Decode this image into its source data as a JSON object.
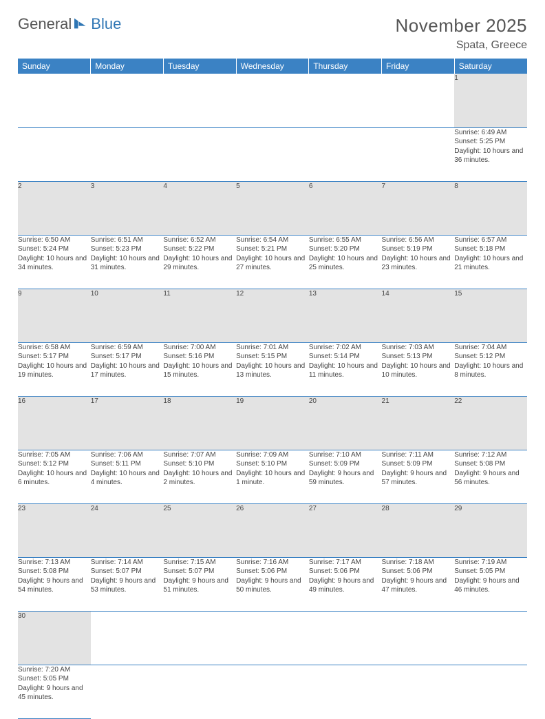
{
  "logo": {
    "text1": "General",
    "text2": "Blue"
  },
  "title": "November 2025",
  "location": "Spata, Greece",
  "colors": {
    "header_bg": "#3b82c4",
    "header_text": "#ffffff",
    "daynum_bg": "#e3e3e3",
    "border": "#3b82c4",
    "text": "#444444",
    "title_text": "#555555"
  },
  "weekdays": [
    "Sunday",
    "Monday",
    "Tuesday",
    "Wednesday",
    "Thursday",
    "Friday",
    "Saturday"
  ],
  "weeks": [
    {
      "days": [
        null,
        null,
        null,
        null,
        null,
        null,
        {
          "n": "1",
          "sunrise": "Sunrise: 6:49 AM",
          "sunset": "Sunset: 5:25 PM",
          "daylight": "Daylight: 10 hours and 36 minutes."
        }
      ]
    },
    {
      "days": [
        {
          "n": "2",
          "sunrise": "Sunrise: 6:50 AM",
          "sunset": "Sunset: 5:24 PM",
          "daylight": "Daylight: 10 hours and 34 minutes."
        },
        {
          "n": "3",
          "sunrise": "Sunrise: 6:51 AM",
          "sunset": "Sunset: 5:23 PM",
          "daylight": "Daylight: 10 hours and 31 minutes."
        },
        {
          "n": "4",
          "sunrise": "Sunrise: 6:52 AM",
          "sunset": "Sunset: 5:22 PM",
          "daylight": "Daylight: 10 hours and 29 minutes."
        },
        {
          "n": "5",
          "sunrise": "Sunrise: 6:54 AM",
          "sunset": "Sunset: 5:21 PM",
          "daylight": "Daylight: 10 hours and 27 minutes."
        },
        {
          "n": "6",
          "sunrise": "Sunrise: 6:55 AM",
          "sunset": "Sunset: 5:20 PM",
          "daylight": "Daylight: 10 hours and 25 minutes."
        },
        {
          "n": "7",
          "sunrise": "Sunrise: 6:56 AM",
          "sunset": "Sunset: 5:19 PM",
          "daylight": "Daylight: 10 hours and 23 minutes."
        },
        {
          "n": "8",
          "sunrise": "Sunrise: 6:57 AM",
          "sunset": "Sunset: 5:18 PM",
          "daylight": "Daylight: 10 hours and 21 minutes."
        }
      ]
    },
    {
      "days": [
        {
          "n": "9",
          "sunrise": "Sunrise: 6:58 AM",
          "sunset": "Sunset: 5:17 PM",
          "daylight": "Daylight: 10 hours and 19 minutes."
        },
        {
          "n": "10",
          "sunrise": "Sunrise: 6:59 AM",
          "sunset": "Sunset: 5:17 PM",
          "daylight": "Daylight: 10 hours and 17 minutes."
        },
        {
          "n": "11",
          "sunrise": "Sunrise: 7:00 AM",
          "sunset": "Sunset: 5:16 PM",
          "daylight": "Daylight: 10 hours and 15 minutes."
        },
        {
          "n": "12",
          "sunrise": "Sunrise: 7:01 AM",
          "sunset": "Sunset: 5:15 PM",
          "daylight": "Daylight: 10 hours and 13 minutes."
        },
        {
          "n": "13",
          "sunrise": "Sunrise: 7:02 AM",
          "sunset": "Sunset: 5:14 PM",
          "daylight": "Daylight: 10 hours and 11 minutes."
        },
        {
          "n": "14",
          "sunrise": "Sunrise: 7:03 AM",
          "sunset": "Sunset: 5:13 PM",
          "daylight": "Daylight: 10 hours and 10 minutes."
        },
        {
          "n": "15",
          "sunrise": "Sunrise: 7:04 AM",
          "sunset": "Sunset: 5:12 PM",
          "daylight": "Daylight: 10 hours and 8 minutes."
        }
      ]
    },
    {
      "days": [
        {
          "n": "16",
          "sunrise": "Sunrise: 7:05 AM",
          "sunset": "Sunset: 5:12 PM",
          "daylight": "Daylight: 10 hours and 6 minutes."
        },
        {
          "n": "17",
          "sunrise": "Sunrise: 7:06 AM",
          "sunset": "Sunset: 5:11 PM",
          "daylight": "Daylight: 10 hours and 4 minutes."
        },
        {
          "n": "18",
          "sunrise": "Sunrise: 7:07 AM",
          "sunset": "Sunset: 5:10 PM",
          "daylight": "Daylight: 10 hours and 2 minutes."
        },
        {
          "n": "19",
          "sunrise": "Sunrise: 7:09 AM",
          "sunset": "Sunset: 5:10 PM",
          "daylight": "Daylight: 10 hours and 1 minute."
        },
        {
          "n": "20",
          "sunrise": "Sunrise: 7:10 AM",
          "sunset": "Sunset: 5:09 PM",
          "daylight": "Daylight: 9 hours and 59 minutes."
        },
        {
          "n": "21",
          "sunrise": "Sunrise: 7:11 AM",
          "sunset": "Sunset: 5:09 PM",
          "daylight": "Daylight: 9 hours and 57 minutes."
        },
        {
          "n": "22",
          "sunrise": "Sunrise: 7:12 AM",
          "sunset": "Sunset: 5:08 PM",
          "daylight": "Daylight: 9 hours and 56 minutes."
        }
      ]
    },
    {
      "days": [
        {
          "n": "23",
          "sunrise": "Sunrise: 7:13 AM",
          "sunset": "Sunset: 5:08 PM",
          "daylight": "Daylight: 9 hours and 54 minutes."
        },
        {
          "n": "24",
          "sunrise": "Sunrise: 7:14 AM",
          "sunset": "Sunset: 5:07 PM",
          "daylight": "Daylight: 9 hours and 53 minutes."
        },
        {
          "n": "25",
          "sunrise": "Sunrise: 7:15 AM",
          "sunset": "Sunset: 5:07 PM",
          "daylight": "Daylight: 9 hours and 51 minutes."
        },
        {
          "n": "26",
          "sunrise": "Sunrise: 7:16 AM",
          "sunset": "Sunset: 5:06 PM",
          "daylight": "Daylight: 9 hours and 50 minutes."
        },
        {
          "n": "27",
          "sunrise": "Sunrise: 7:17 AM",
          "sunset": "Sunset: 5:06 PM",
          "daylight": "Daylight: 9 hours and 49 minutes."
        },
        {
          "n": "28",
          "sunrise": "Sunrise: 7:18 AM",
          "sunset": "Sunset: 5:06 PM",
          "daylight": "Daylight: 9 hours and 47 minutes."
        },
        {
          "n": "29",
          "sunrise": "Sunrise: 7:19 AM",
          "sunset": "Sunset: 5:05 PM",
          "daylight": "Daylight: 9 hours and 46 minutes."
        }
      ]
    },
    {
      "days": [
        {
          "n": "30",
          "sunrise": "Sunrise: 7:20 AM",
          "sunset": "Sunset: 5:05 PM",
          "daylight": "Daylight: 9 hours and 45 minutes."
        },
        null,
        null,
        null,
        null,
        null,
        null
      ]
    }
  ]
}
